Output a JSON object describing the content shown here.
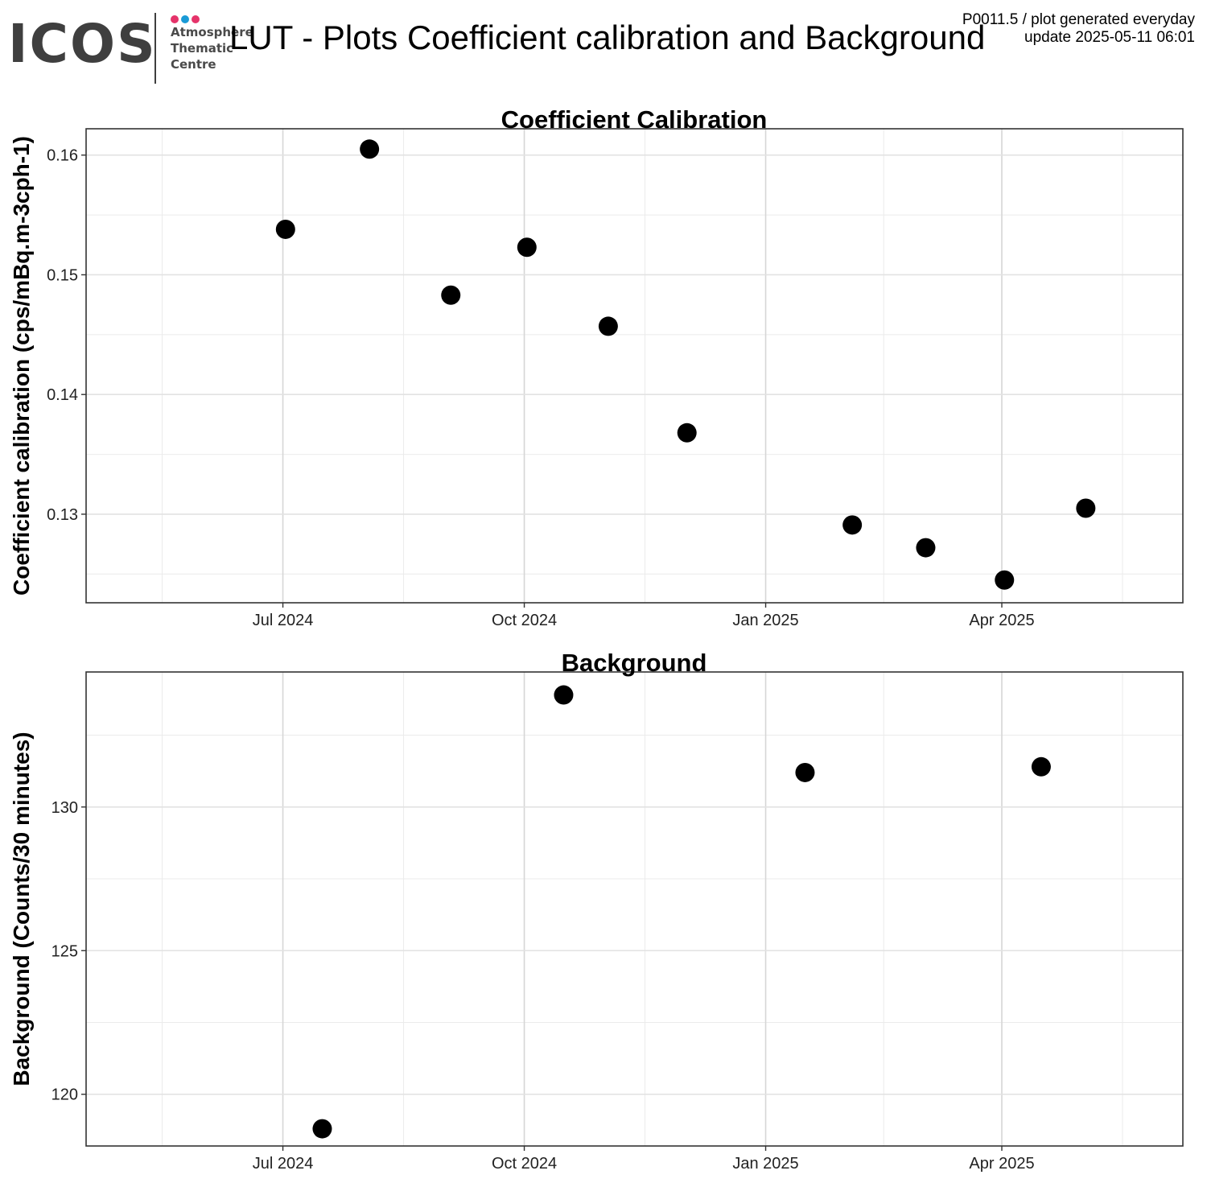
{
  "header": {
    "logo_word": "ICOS",
    "logo_lines": [
      "Atmosphere",
      "Thematic",
      "Centre"
    ],
    "logo_dot_colors": [
      "#e5336a",
      "#1a9ad6",
      "#e5336a"
    ],
    "title": "LUT - Plots Coefficient calibration and Background",
    "meta_line1": "P0011.5 / plot generated everyday",
    "meta_line2": "update  2025-05-11 06:01"
  },
  "chart_data": [
    {
      "type": "scatter",
      "title": "Coefficient Calibration",
      "ylabel": "Coefficient calibration (cps/mBq.m-3cph-1)",
      "xlabel": "",
      "x_tick_labels": [
        "Jul 2024",
        "Oct 2024",
        "Jan 2025",
        "Apr 2025"
      ],
      "x_ticks": [
        "2024-07-01",
        "2024-10-01",
        "2025-01-01",
        "2025-04-01"
      ],
      "xlim": [
        "2024-04-17",
        "2025-06-09"
      ],
      "y_ticks": [
        0.13,
        0.14,
        0.15,
        0.16
      ],
      "y_tick_labels": [
        "0.13",
        "0.14",
        "0.15",
        "0.16"
      ],
      "ylim": [
        0.1226,
        0.1622
      ],
      "grid": true,
      "point_color": "#000000",
      "points": [
        {
          "x": "2024-07-02",
          "y": 0.1538
        },
        {
          "x": "2024-08-03",
          "y": 0.1605
        },
        {
          "x": "2024-09-03",
          "y": 0.1483
        },
        {
          "x": "2024-10-02",
          "y": 0.1523
        },
        {
          "x": "2024-11-02",
          "y": 0.1457
        },
        {
          "x": "2024-12-02",
          "y": 0.1368
        },
        {
          "x": "2025-02-03",
          "y": 0.1291
        },
        {
          "x": "2025-03-03",
          "y": 0.1272
        },
        {
          "x": "2025-04-02",
          "y": 0.1245
        },
        {
          "x": "2025-05-03",
          "y": 0.1305
        }
      ]
    },
    {
      "type": "scatter",
      "title": "Background",
      "ylabel": "Background (Counts/30 minutes)",
      "xlabel": "",
      "x_tick_labels": [
        "Jul 2024",
        "Oct 2024",
        "Jan 2025",
        "Apr 2025"
      ],
      "x_ticks": [
        "2024-07-01",
        "2024-10-01",
        "2025-01-01",
        "2025-04-01"
      ],
      "xlim": [
        "2024-04-17",
        "2025-06-09"
      ],
      "y_ticks": [
        120,
        125,
        130
      ],
      "y_tick_labels": [
        "120",
        "125",
        "130"
      ],
      "ylim": [
        118.2,
        134.7
      ],
      "grid": true,
      "point_color": "#000000",
      "points": [
        {
          "x": "2024-07-16",
          "y": 118.8
        },
        {
          "x": "2024-10-16",
          "y": 133.9
        },
        {
          "x": "2025-01-16",
          "y": 131.2
        },
        {
          "x": "2025-04-16",
          "y": 131.4
        }
      ]
    }
  ]
}
